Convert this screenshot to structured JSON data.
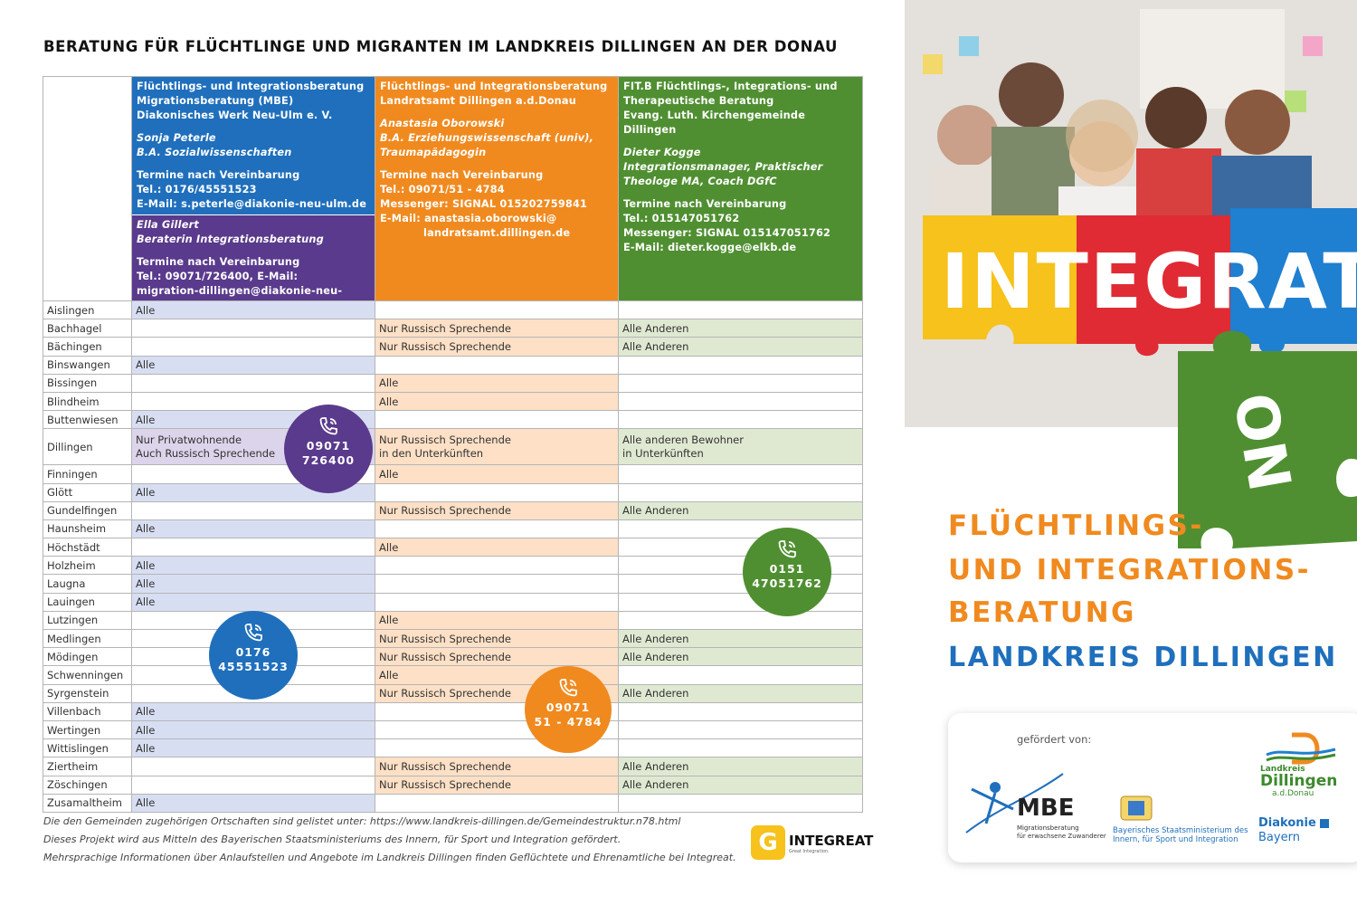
{
  "title": "BERATUNG FÜR FLÜCHTLINGE UND MIGRANTEN IM LANDKREIS DILLINGEN AN DER DONAU",
  "header": {
    "mbe": {
      "l1": "Flüchtlings- und Integrationsberatung",
      "l2": "Migrationsberatung (MBE)",
      "l3": "Diakonisches Werk Neu-Ulm e. V.",
      "p1": "Sonja Peterle",
      "p2": "B.A. Sozialwissenschaften",
      "t1": "Termine nach Vereinbarung",
      "t2": "Tel.: 0176/45551523",
      "t3": "E-Mail: s.peterle@diakonie-neu-ulm.de"
    },
    "mbe2": {
      "p1": "Ella Gillert",
      "p2": "Beraterin Integrationsberatung",
      "t1": "Termine nach Vereinbarung",
      "t2": "Tel.: 09071/726400, E-Mail:",
      "t3": "migration-dillingen@diakonie-neu-ulm.de"
    },
    "lra": {
      "l1": "Flüchtlings- und Integrationsberatung",
      "l2": "Landratsamt Dillingen a.d.Donau",
      "p1": "Anastasia Oborowski",
      "p2": "B.A. Erziehungswissenschaft (univ),",
      "p3": "Traumapädagogin",
      "t1": "Termine nach Vereinbarung",
      "t2": "Tel.: 09071/51 - 4784",
      "t3": "Messenger: SIGNAL 015202759841",
      "t4": "E-Mail: anastasia.oborowski@",
      "t5": "landratsamt.dillingen.de"
    },
    "fit": {
      "l1": "FIT.B  Flüchtlings-, Integrations- und",
      "l2": "Therapeutische Beratung",
      "l3": "Evang. Luth. Kirchengemeinde Dillingen",
      "p1": "Dieter Kogge",
      "p2": "Integrationsmanager, Praktischer",
      "p3": "Theologe MA, Coach DGfC",
      "t1": "Termine nach Vereinbarung",
      "t2": "Tel.: 015147051762",
      "t3": "Messenger:  SIGNAL 015147051762",
      "t4": "E-Mail: dieter.kogge@elkb.de"
    }
  },
  "rows": [
    {
      "town": "Aislingen",
      "mbe": "Alle",
      "lra": "",
      "fit": ""
    },
    {
      "town": "Bachhagel",
      "mbe": "",
      "lra": "Nur Russisch Sprechende",
      "fit": "Alle Anderen"
    },
    {
      "town": "Bächingen",
      "mbe": "",
      "lra": "Nur Russisch Sprechende",
      "fit": "Alle Anderen"
    },
    {
      "town": "Binswangen",
      "mbe": "Alle",
      "lra": "",
      "fit": ""
    },
    {
      "town": "Bissingen",
      "mbe": "",
      "lra": "Alle",
      "fit": ""
    },
    {
      "town": "Blindheim",
      "mbe": "",
      "lra": "Alle",
      "fit": ""
    },
    {
      "town": "Buttenwiesen",
      "mbe": "Alle",
      "lra": "",
      "fit": ""
    },
    {
      "town": "Dillingen",
      "mbe": "Nur Privatwohnende",
      "mbe_b": "Auch Russisch Sprechende",
      "lra": "Nur Russisch Sprechende",
      "lra_b": "in den Unterkünften",
      "fit": "Alle anderen Bewohner",
      "fit_b": "in Unterkünften"
    },
    {
      "town": "Finningen",
      "mbe": "",
      "lra": "Alle",
      "fit": ""
    },
    {
      "town": "Glött",
      "mbe": "Alle",
      "lra": "",
      "fit": ""
    },
    {
      "town": "Gundelfingen",
      "mbe": "",
      "lra": "Nur Russisch Sprechende",
      "fit": "Alle Anderen"
    },
    {
      "town": "Haunsheim",
      "mbe": "Alle",
      "lra": "",
      "fit": ""
    },
    {
      "town": "Höchstädt",
      "mbe": "",
      "lra": "Alle",
      "fit": ""
    },
    {
      "town": "Holzheim",
      "mbe": "Alle",
      "lra": "",
      "fit": ""
    },
    {
      "town": "Laugna",
      "mbe": "Alle",
      "lra": "",
      "fit": ""
    },
    {
      "town": "Lauingen",
      "mbe": "Alle",
      "lra": "",
      "fit": ""
    },
    {
      "town": "Lutzingen",
      "mbe": "",
      "lra": "Alle",
      "fit": ""
    },
    {
      "town": "Medlingen",
      "mbe": "",
      "lra": "Nur Russisch Sprechende",
      "fit": "Alle Anderen"
    },
    {
      "town": "Mödingen",
      "mbe": "",
      "lra": "Nur Russisch Sprechende",
      "fit": "Alle Anderen"
    },
    {
      "town": "Schwenningen",
      "mbe": "",
      "lra": "Alle",
      "fit": ""
    },
    {
      "town": "Syrgenstein",
      "mbe": "",
      "lra": "Nur Russisch Sprechende",
      "fit": "Alle Anderen"
    },
    {
      "town": "Villenbach",
      "mbe": "Alle",
      "lra": "",
      "fit": ""
    },
    {
      "town": "Wertingen",
      "mbe": "Alle",
      "lra": "",
      "fit": ""
    },
    {
      "town": "Wittislingen",
      "mbe": "Alle",
      "lra": "",
      "fit": ""
    },
    {
      "town": "Ziertheim",
      "mbe": "",
      "lra": "Nur Russisch Sprechende",
      "fit": "Alle Anderen"
    },
    {
      "town": "Zöschingen",
      "mbe": "",
      "lra": "Nur Russisch Sprechende",
      "fit": "Alle Anderen"
    },
    {
      "town": "Zusamaltheim",
      "mbe": "Alle",
      "lra": "",
      "fit": ""
    }
  ],
  "bubbles": {
    "purple": {
      "l1": "09071",
      "l2": "726400",
      "color": "#5a3a8c"
    },
    "blue": {
      "l1": "0176",
      "l2": "45551523",
      "color": "#1f6fbc"
    },
    "orange": {
      "l1": "09071",
      "l2": "51 - 4784",
      "color": "#f08a1f"
    },
    "green": {
      "l1": "0151",
      "l2": "47051762",
      "color": "#4f8f31"
    }
  },
  "footer": {
    "f1": "Die den Gemeinden zugehörigen Ortschaften sind gelistet unter: https://www.landkreis-dillingen.de/Gemeindestruktur.n78.html",
    "f2": "Dieses Projekt wird aus Mitteln des Bayerischen Staatsministeriums des Innern, für Sport und Integration gefördert.",
    "f3": "Mehrsprachige Informationen über Anlaufstellen und Angebote im Landkreis Dillingen finden Geflüchtete und Ehrenamtliche bei Integreat."
  },
  "integreat": {
    "word": "INTEGREAT",
    "sub": "Great Integration."
  },
  "poster": {
    "puzzle_word": "INTEGRATI",
    "puzzle_tail": "ON",
    "colors": {
      "yellow": "#f6c21b",
      "red": "#e02b34",
      "blue": "#1f7fd0",
      "green": "#4f8f31"
    }
  },
  "brand": {
    "l1": "FLÜCHTLINGS-",
    "l2": "UND INTEGRATIONS-",
    "l3": "BERATUNG",
    "l4": "LANDKREIS DILLINGEN"
  },
  "sponsors": {
    "label": "gefördert von:",
    "mbe_word": "MBE",
    "mbe_sub1": "Migrationsberatung",
    "mbe_sub2": "für erwachsene Zuwanderer",
    "bay1": "Bayerisches Staatsministerium des",
    "bay2": "Innern, für Sport und Integration",
    "lk1": "Landkreis",
    "lk2": "Dillingen",
    "lk3": "a.d.Donau",
    "dk1": "Diakonie",
    "dk2": "Bayern"
  }
}
